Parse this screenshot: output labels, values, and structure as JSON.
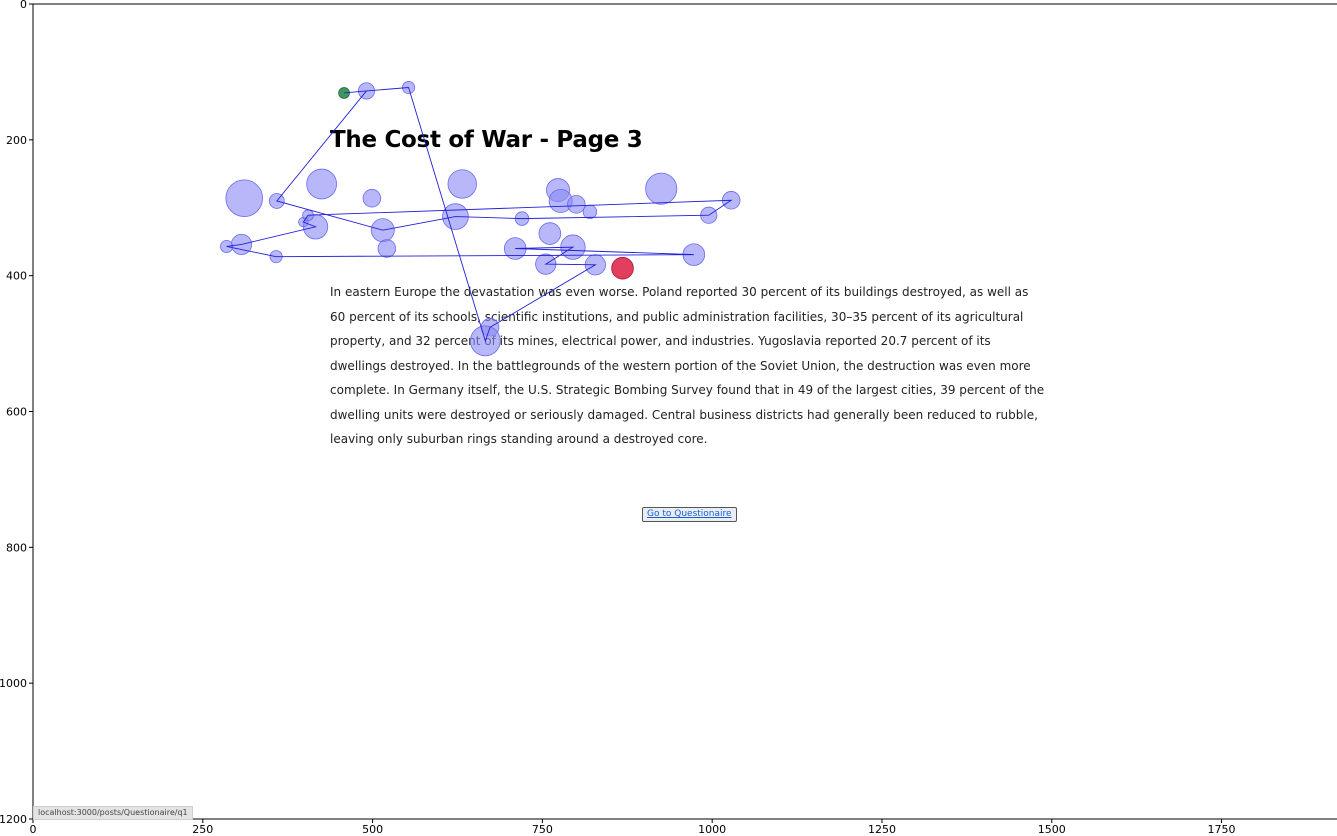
{
  "page": {
    "title": "The Cost of War - Page 3",
    "paragraph": "In eastern Europe the devastation was even worse. Poland reported 30 percent of its buildings destroyed, as well as 60 percent of its schools, scientific institutions, and public administration facilities, 30–35 percent of its agricultural property, and 32 percent of its mines, electrical power, and industries. Yugoslavia reported 20.7 percent of its dwellings destroyed. In the battlegrounds of the western portion of the Soviet Union, the destruction was even more complete. In Germany itself, the U.S. Strategic Bombing Survey found that in 49 of the largest cities, 39 percent of the dwelling units were destroyed or seriously damaged. Central business districts had generally been reduced to rubble, leaving only suburban rings standing around a destroyed core.",
    "button_label": "Go to Questionaire",
    "status_url": "localhost:3000/posts/Questionaire/q1"
  },
  "chart_data": {
    "type": "scatter",
    "xlim": [
      0,
      1920
    ],
    "ylim": [
      0,
      1200
    ],
    "y_inverted": true,
    "x_ticks": [
      0,
      250,
      500,
      750,
      1000,
      1250,
      1500,
      1750
    ],
    "y_ticks": [
      0,
      200,
      400,
      600,
      800,
      1000,
      1200
    ],
    "x_tick_labels": [
      "0",
      "250",
      "500",
      "750",
      "1000",
      "1250",
      "1500",
      "1750"
    ],
    "y_tick_labels": [
      "0",
      "200",
      "400",
      "600",
      "800",
      "1000",
      "1200"
    ],
    "colors": {
      "fixation": "#8a8af6",
      "path": "#2020d8",
      "start": "#2e8a4e",
      "end": "#dc143c",
      "axis": "#000000"
    },
    "fixations": [
      {
        "x": 458,
        "y": 131,
        "r": 8,
        "role": "start"
      },
      {
        "x": 491,
        "y": 128,
        "r": 12
      },
      {
        "x": 553,
        "y": 123,
        "r": 9
      },
      {
        "x": 425,
        "y": 265,
        "r": 22
      },
      {
        "x": 499,
        "y": 286,
        "r": 13
      },
      {
        "x": 632,
        "y": 265,
        "r": 21
      },
      {
        "x": 773,
        "y": 274,
        "r": 17
      },
      {
        "x": 777,
        "y": 290,
        "r": 17
      },
      {
        "x": 800,
        "y": 295,
        "r": 13
      },
      {
        "x": 820,
        "y": 306,
        "r": 10
      },
      {
        "x": 925,
        "y": 272,
        "r": 23
      },
      {
        "x": 1028,
        "y": 289,
        "r": 13
      },
      {
        "x": 995,
        "y": 311,
        "r": 12
      },
      {
        "x": 720,
        "y": 316,
        "r": 10
      },
      {
        "x": 622,
        "y": 313,
        "r": 19
      },
      {
        "x": 416,
        "y": 328,
        "r": 18
      },
      {
        "x": 398,
        "y": 321,
        "r": 7
      },
      {
        "x": 405,
        "y": 311,
        "r": 8
      },
      {
        "x": 359,
        "y": 290,
        "r": 11
      },
      {
        "x": 311,
        "y": 286,
        "r": 27
      },
      {
        "x": 515,
        "y": 333,
        "r": 17
      },
      {
        "x": 521,
        "y": 360,
        "r": 13
      },
      {
        "x": 761,
        "y": 338,
        "r": 16
      },
      {
        "x": 795,
        "y": 358,
        "r": 18
      },
      {
        "x": 710,
        "y": 360,
        "r": 16
      },
      {
        "x": 755,
        "y": 383,
        "r": 15
      },
      {
        "x": 828,
        "y": 384,
        "r": 15
      },
      {
        "x": 973,
        "y": 369,
        "r": 16
      },
      {
        "x": 358,
        "y": 372,
        "r": 9
      },
      {
        "x": 307,
        "y": 354,
        "r": 15
      },
      {
        "x": 285,
        "y": 357,
        "r": 9
      },
      {
        "x": 673,
        "y": 476,
        "r": 13
      },
      {
        "x": 666,
        "y": 496,
        "r": 22
      },
      {
        "x": 868,
        "y": 389,
        "r": 16,
        "role": "end"
      }
    ],
    "path_x": [
      458,
      491,
      553,
      666,
      673,
      828,
      755,
      795,
      710,
      973,
      358,
      285,
      307,
      416,
      398,
      405,
      1028,
      995,
      720,
      622,
      515,
      359,
      491
    ],
    "path_y": [
      131,
      128,
      123,
      496,
      476,
      384,
      383,
      358,
      360,
      369,
      372,
      357,
      354,
      328,
      321,
      311,
      289,
      311,
      316,
      313,
      333,
      290,
      128
    ]
  }
}
